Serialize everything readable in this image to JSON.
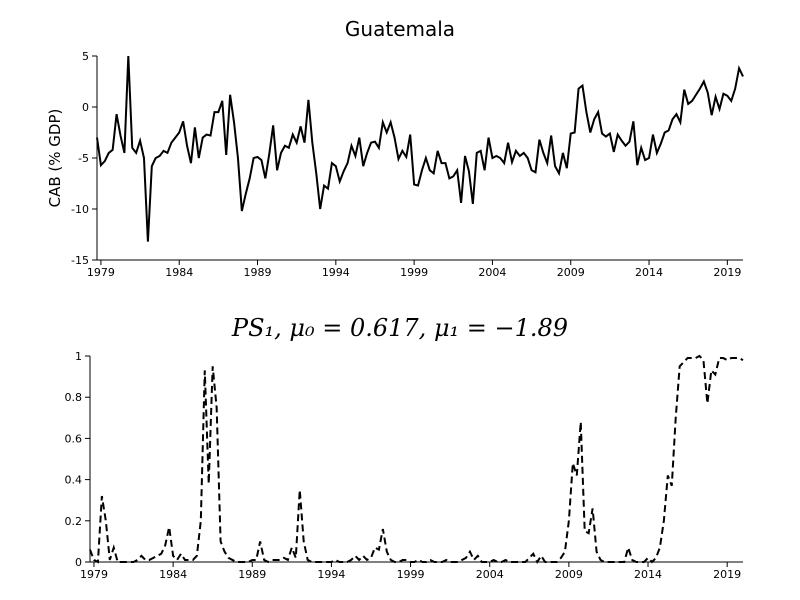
{
  "chart_data": [
    {
      "type": "line",
      "title": "Guatemala",
      "y_label": "CAB (% GDP)",
      "x": [
        1978.75,
        1979,
        1979.25,
        1979.5,
        1979.75,
        1980,
        1980.25,
        1980.5,
        1980.75,
        1981,
        1981.25,
        1981.5,
        1981.75,
        1982,
        1982.25,
        1982.5,
        1982.75,
        1983,
        1983.25,
        1983.5,
        1983.75,
        1984,
        1984.25,
        1984.5,
        1984.75,
        1985,
        1985.25,
        1985.5,
        1985.75,
        1986,
        1986.25,
        1986.5,
        1986.75,
        1987,
        1987.25,
        1987.5,
        1987.75,
        1988,
        1988.25,
        1988.5,
        1988.75,
        1989,
        1989.25,
        1989.5,
        1989.75,
        1990,
        1990.25,
        1990.5,
        1990.75,
        1991,
        1991.25,
        1991.5,
        1991.75,
        1992,
        1992.25,
        1992.5,
        1992.75,
        1993,
        1993.25,
        1993.5,
        1993.75,
        1994,
        1994.25,
        1994.5,
        1994.75,
        1995,
        1995.25,
        1995.5,
        1995.75,
        1996,
        1996.25,
        1996.5,
        1996.75,
        1997,
        1997.25,
        1997.5,
        1997.75,
        1998,
        1998.25,
        1998.5,
        1998.75,
        1999,
        1999.25,
        1999.5,
        1999.75,
        2000,
        2000.25,
        2000.5,
        2000.75,
        2001,
        2001.25,
        2001.5,
        2001.75,
        2002,
        2002.25,
        2002.5,
        2002.75,
        2003,
        2003.25,
        2003.5,
        2003.75,
        2004,
        2004.25,
        2004.5,
        2004.75,
        2005,
        2005.25,
        2005.5,
        2005.75,
        2006,
        2006.25,
        2006.5,
        2006.75,
        2007,
        2007.25,
        2007.5,
        2007.75,
        2008,
        2008.25,
        2008.5,
        2008.75,
        2009,
        2009.25,
        2009.5,
        2009.75,
        2010,
        2010.25,
        2010.5,
        2010.75,
        2011,
        2011.25,
        2011.5,
        2011.75,
        2012,
        2012.25,
        2012.5,
        2012.75,
        2013,
        2013.25,
        2013.5,
        2013.75,
        2014,
        2014.25,
        2014.5,
        2014.75,
        2015,
        2015.25,
        2015.5,
        2015.75,
        2016,
        2016.25,
        2016.5,
        2016.75,
        2017,
        2017.25,
        2017.5,
        2017.75,
        2018,
        2018.25,
        2018.5,
        2018.75,
        2019,
        2019.25,
        2019.5,
        2019.75,
        2020
      ],
      "series": [
        {
          "color": "#000000",
          "dash": false,
          "values": [
            -3,
            -5.7,
            -5.3,
            -4.5,
            -4.2,
            -0.7,
            -2.8,
            -4.5,
            5,
            -4,
            -4.5,
            -3.3,
            -5,
            -13.2,
            -5.8,
            -5,
            -4.8,
            -4.3,
            -4.5,
            -3.5,
            -3,
            -2.5,
            -1.4,
            -3.8,
            -5.5,
            -2,
            -5,
            -3,
            -2.7,
            -2.8,
            -0.5,
            -0.5,
            0.6,
            -4.7,
            1.2,
            -1.5,
            -5,
            -10.2,
            -8.5,
            -7,
            -5,
            -4.9,
            -5.2,
            -7,
            -4.6,
            -1.8,
            -6.2,
            -4.5,
            -3.8,
            -4,
            -2.7,
            -3.5,
            -1.9,
            -3.5,
            0.7,
            -3.5,
            -6.5,
            -10,
            -7.7,
            -8,
            -5.5,
            -5.8,
            -7.3,
            -6.3,
            -5.5,
            -3.8,
            -4.8,
            -3,
            -5.8,
            -4.5,
            -3.5,
            -3.4,
            -4,
            -1.5,
            -2.5,
            -1.5,
            -3,
            -5.1,
            -4.3,
            -4.9,
            -2.7,
            -7.6,
            -7.7,
            -6.2,
            -5,
            -6.2,
            -6.5,
            -4.3,
            -5.5,
            -5.5,
            -7,
            -6.8,
            -6.2,
            -9.4,
            -4.8,
            -6.3,
            -9.5,
            -4.5,
            -4.3,
            -6.2,
            -3,
            -5,
            -4.8,
            -5,
            -5.5,
            -3.5,
            -5.4,
            -4.3,
            -4.8,
            -4.5,
            -5,
            -6.2,
            -6.4,
            -3.2,
            -4.5,
            -5.5,
            -2.8,
            -5.8,
            -6.5,
            -4.5,
            -6,
            -2.6,
            -2.5,
            1.8,
            2.1,
            -0.5,
            -2.5,
            -1.2,
            -0.5,
            -2.6,
            -2.9,
            -2.6,
            -4.4,
            -2.7,
            -3.3,
            -3.8,
            -3.4,
            -1.4,
            -5.7,
            -4,
            -5.2,
            -5,
            -2.7,
            -4.5,
            -3.6,
            -2.5,
            -2.3,
            -1.2,
            -0.7,
            -1.5,
            1.7,
            0.3,
            0.6,
            1.2,
            1.8,
            2.5,
            1.4,
            -0.8,
            1,
            -0.2,
            1.3,
            1.1,
            0.6,
            1.8,
            3.8,
            3
          ]
        }
      ],
      "xlim": [
        1978.75,
        2020
      ],
      "xticks": [
        1979,
        1984,
        1989,
        1994,
        1999,
        2004,
        2009,
        2014,
        2019
      ],
      "ylim": [
        -15,
        5
      ],
      "yticks": [
        -15,
        -10,
        -5,
        0,
        5
      ]
    },
    {
      "type": "line",
      "title": "PS₁, μ₀ = 0.617, μ₁ = −1.89",
      "x": [
        1978.75,
        1979,
        1979.25,
        1979.5,
        1979.75,
        1980,
        1980.25,
        1980.5,
        1980.75,
        1981,
        1981.25,
        1981.5,
        1981.75,
        1982,
        1982.25,
        1982.5,
        1982.75,
        1983,
        1983.25,
        1983.5,
        1983.75,
        1984,
        1984.25,
        1984.5,
        1984.75,
        1985,
        1985.25,
        1985.5,
        1985.75,
        1986,
        1986.25,
        1986.5,
        1986.75,
        1987,
        1987.25,
        1987.5,
        1987.75,
        1988,
        1988.25,
        1988.5,
        1988.75,
        1989,
        1989.25,
        1989.5,
        1989.75,
        1990,
        1990.25,
        1990.5,
        1990.75,
        1991,
        1991.25,
        1991.5,
        1991.75,
        1992,
        1992.25,
        1992.5,
        1992.75,
        1993,
        1993.25,
        1993.5,
        1993.75,
        1994,
        1994.25,
        1994.5,
        1994.75,
        1995,
        1995.25,
        1995.5,
        1995.75,
        1996,
        1996.25,
        1996.5,
        1996.75,
        1997,
        1997.25,
        1997.5,
        1997.75,
        1998,
        1998.25,
        1998.5,
        1998.75,
        1999,
        1999.25,
        1999.5,
        1999.75,
        2000,
        2000.25,
        2000.5,
        2000.75,
        2001,
        2001.25,
        2001.5,
        2001.75,
        2002,
        2002.25,
        2002.5,
        2002.75,
        2003,
        2003.25,
        2003.5,
        2003.75,
        2004,
        2004.25,
        2004.5,
        2004.75,
        2005,
        2005.25,
        2005.5,
        2005.75,
        2006,
        2006.25,
        2006.5,
        2006.75,
        2007,
        2007.25,
        2007.5,
        2007.75,
        2008,
        2008.25,
        2008.5,
        2008.75,
        2009,
        2009.25,
        2009.5,
        2009.75,
        2010,
        2010.25,
        2010.5,
        2010.75,
        2011,
        2011.25,
        2011.5,
        2011.75,
        2012,
        2012.25,
        2012.5,
        2012.75,
        2013,
        2013.25,
        2013.5,
        2013.75,
        2014,
        2014.25,
        2014.5,
        2014.75,
        2015,
        2015.25,
        2015.5,
        2015.75,
        2016,
        2016.25,
        2016.5,
        2016.75,
        2017,
        2017.25,
        2017.5,
        2017.75,
        2018,
        2018.25,
        2018.5,
        2018.75,
        2019,
        2019.25,
        2019.5,
        2019.75,
        2020
      ],
      "series": [
        {
          "color": "#000000",
          "dash": true,
          "values": [
            0.06,
            0.01,
            0,
            0.32,
            0.2,
            0.01,
            0.07,
            0,
            0,
            0,
            0,
            0,
            0.01,
            0.03,
            0.01,
            0.01,
            0.02,
            0.03,
            0.04,
            0.08,
            0.17,
            0.03,
            0.01,
            0.04,
            0.01,
            0.01,
            0.01,
            0.03,
            0.2,
            0.93,
            0.38,
            0.95,
            0.75,
            0.1,
            0.05,
            0.02,
            0.01,
            0,
            0,
            0,
            0,
            0.01,
            0.01,
            0.1,
            0.01,
            0,
            0.01,
            0.01,
            0.01,
            0.02,
            0.01,
            0.07,
            0.02,
            0.35,
            0.1,
            0.01,
            0,
            0,
            0,
            0,
            0,
            0,
            0.01,
            0,
            0,
            0,
            0.01,
            0.03,
            0.01,
            0.03,
            0.01,
            0.02,
            0.07,
            0.06,
            0.16,
            0.05,
            0.01,
            0,
            0,
            0.01,
            0.01,
            0,
            0,
            0.01,
            0,
            0,
            0.01,
            0,
            0,
            0,
            0.01,
            0,
            0,
            0,
            0.01,
            0.02,
            0.05,
            0.01,
            0.03,
            0,
            0,
            0,
            0.01,
            0,
            0,
            0.01,
            0,
            0,
            0,
            0,
            0,
            0.02,
            0.04,
            0,
            0.03,
            0,
            0,
            0,
            0,
            0.02,
            0.05,
            0.2,
            0.48,
            0.42,
            0.68,
            0.15,
            0.14,
            0.26,
            0.05,
            0.01,
            0,
            0,
            0,
            0,
            0,
            0,
            0.07,
            0.01,
            0,
            0,
            0,
            0.02,
            0,
            0.02,
            0.07,
            0.2,
            0.42,
            0.37,
            0.7,
            0.95,
            0.97,
            0.99,
            0.99,
            0.99,
            1,
            0.98,
            0.77,
            0.93,
            0.91,
            0.99,
            0.99,
            0.98,
            0.99,
            0.99,
            0.99,
            0.98
          ]
        }
      ],
      "xlim": [
        1978.75,
        2020
      ],
      "xticks": [
        1979,
        1984,
        1989,
        1994,
        1999,
        2004,
        2009,
        2014,
        2019
      ],
      "ylim": [
        0,
        1
      ],
      "yticks": [
        0,
        0.2,
        0.4,
        0.6,
        0.8,
        1
      ]
    }
  ]
}
